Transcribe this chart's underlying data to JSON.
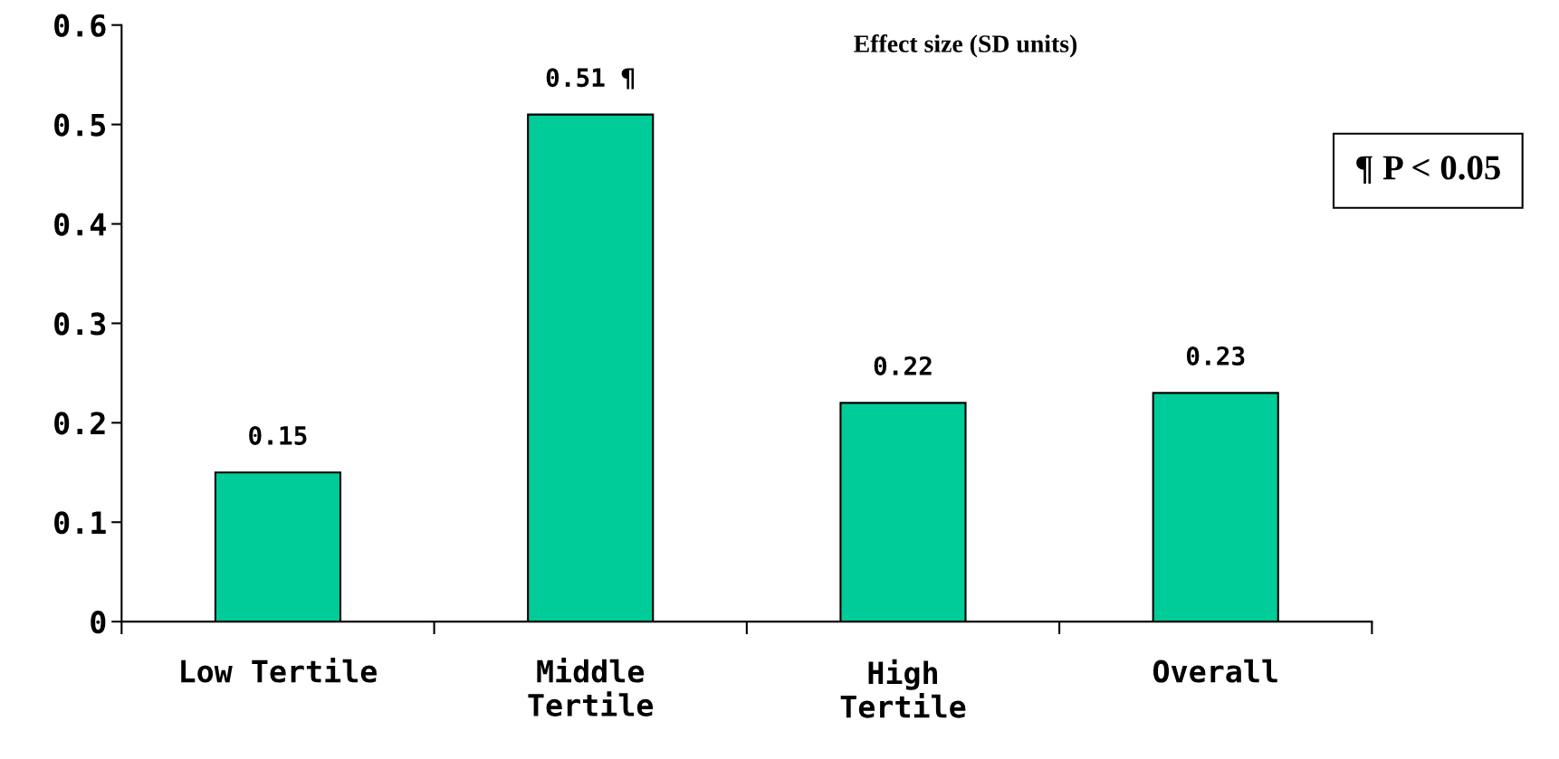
{
  "chart_data": {
    "type": "bar",
    "title": "Effect size (SD units)",
    "categories": [
      "Low Tertile",
      "Middle\nTertile",
      "High\nTertile",
      "Overall"
    ],
    "values": [
      0.15,
      0.51,
      0.22,
      0.23
    ],
    "value_labels": [
      "0.15",
      "0.51 ¶",
      "0.22",
      "0.23"
    ],
    "color": "#00cc99",
    "ylim": [
      0,
      0.6
    ],
    "yticks": [
      0,
      0.1,
      0.2,
      0.3,
      0.4,
      0.5,
      0.6
    ],
    "annotations": [
      "¶ P < 0.05"
    ],
    "grid": false,
    "legend": false
  }
}
